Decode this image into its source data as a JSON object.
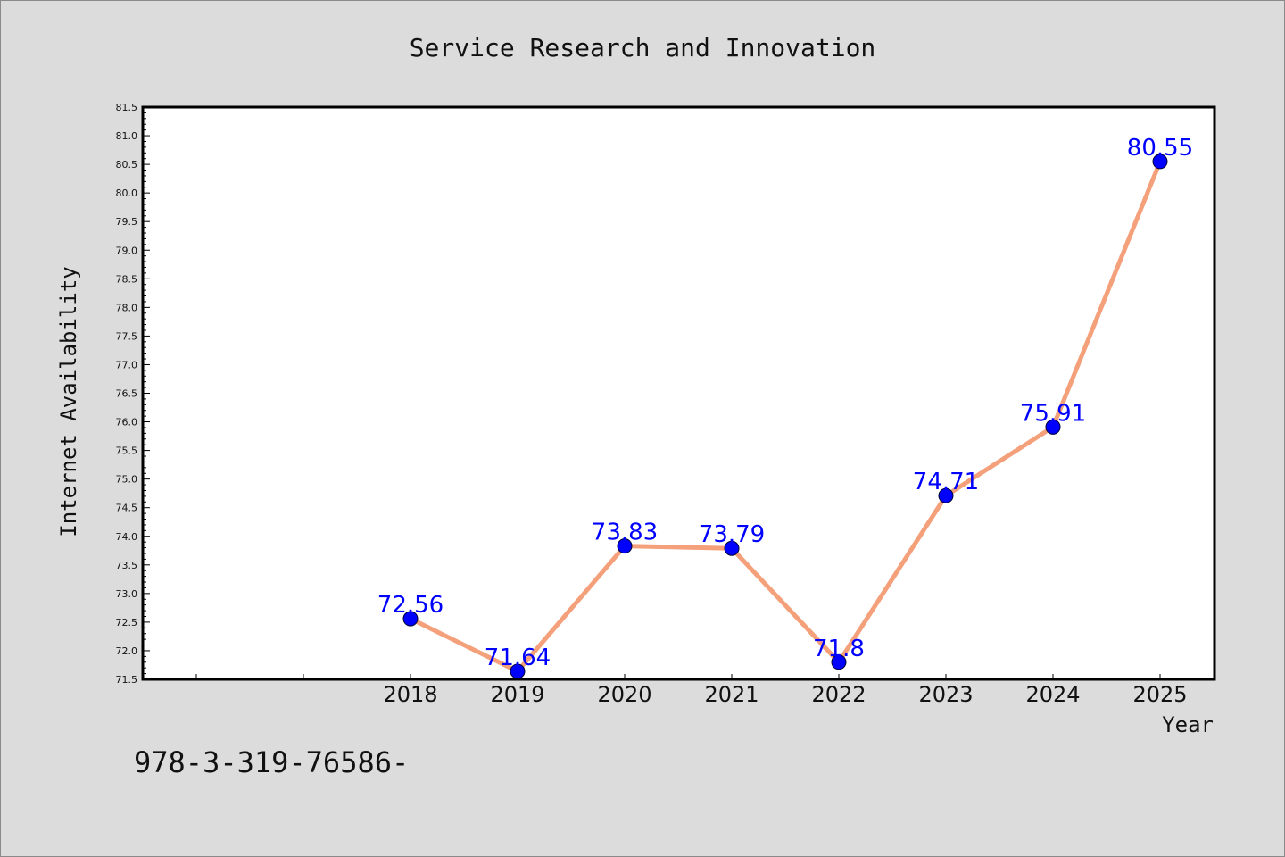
{
  "chart_data": {
    "type": "line",
    "title": "Service Research and Innovation",
    "xlabel": "Year",
    "ylabel": "Internet Availability",
    "categories": [
      "2018",
      "2019",
      "2020",
      "2021",
      "2022",
      "2023",
      "2024",
      "2025"
    ],
    "series": [
      {
        "values": [
          72.56,
          71.64,
          73.83,
          73.79,
          71.8,
          74.71,
          75.91,
          80.55
        ]
      }
    ],
    "data_labels": [
      "72.56",
      "71.64",
      "73.83",
      "73.79",
      "71.8",
      "74.71",
      "75.91",
      "80.55"
    ],
    "ylim": [
      71.5,
      81.5
    ],
    "yticks": [
      "71.5",
      "72.0",
      "72.5",
      "73.0",
      "73.5",
      "74.0",
      "74.5",
      "75.0",
      "75.5",
      "76.0",
      "76.5",
      "77.0",
      "77.5",
      "78.0",
      "78.5",
      "79.0",
      "79.5",
      "80.0",
      "80.5",
      "81.0",
      "81.5"
    ],
    "grid": false,
    "legend": "none",
    "colors": {
      "line": "#f4a07a",
      "marker": "#0000ff",
      "label": "#0000ff",
      "background": "#dcdcdc",
      "plot_background": "#ffffff"
    }
  },
  "footer": {
    "text": "978-3-319-76586-"
  }
}
